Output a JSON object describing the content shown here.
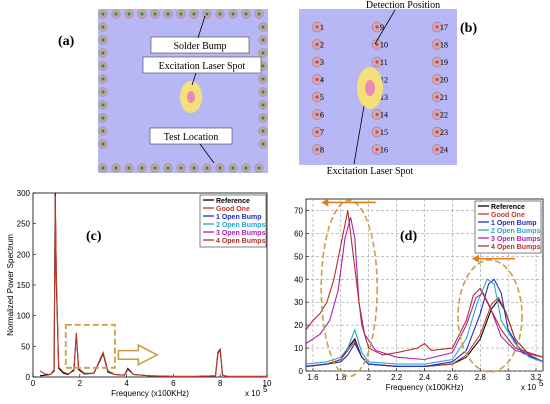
{
  "panel_a": {
    "letter": "(a)",
    "labels": {
      "solder_bump": "Solder Bump",
      "laser_spot": "Excitation Laser Spot",
      "test_location": "Test Location"
    }
  },
  "panel_b": {
    "letter": "(b)",
    "labels": {
      "detection": "Detection Position",
      "laser_spot": "Excitation Laser Spot"
    },
    "pads": [
      "1",
      "2",
      "3",
      "4",
      "5",
      "6",
      "7",
      "8",
      "9",
      "10",
      "11",
      "12",
      "13",
      "14",
      "15",
      "16",
      "17",
      "18",
      "19",
      "20",
      "21",
      "22",
      "23",
      "24"
    ]
  },
  "colors": {
    "reference": "#000000",
    "good_one": "#c0392b",
    "open1": "#1f2fbf",
    "open2": "#2aa6c9",
    "open3": "#b020b0",
    "open4": "#b03030",
    "chip": "#b7b7f5",
    "dash": "#c8a046"
  },
  "chart_data": [
    {
      "type": "line",
      "panel": "(c)",
      "ylabel": "Normalized Power Spectrum",
      "xlabel": "Frequency (x100KHz)",
      "x_exponent": "x 10",
      "x_exponent_sup": "5",
      "xlim": [
        0,
        10
      ],
      "ylim": [
        0,
        300
      ],
      "xticks": [
        "0",
        "2",
        "4",
        "6",
        "8",
        "10"
      ],
      "yticks": [
        "0",
        "50",
        "100",
        "150",
        "200",
        "250",
        "300"
      ],
      "legend": [
        "Reference",
        "Good One",
        "1 Open Bump",
        "2 Open Bumps",
        "3 Open Bumps",
        "4 Open Bumps"
      ],
      "series": [
        {
          "name": "Reference",
          "x": [
            0.3,
            0.5,
            0.75,
            0.9,
            0.95,
            1.0,
            1.1,
            1.3,
            1.5,
            1.75,
            1.85,
            1.95,
            2.2,
            2.6,
            2.9,
            3.0,
            3.2,
            3.5,
            3.9,
            4.05,
            4.3,
            5,
            6,
            7,
            7.8,
            7.9,
            8.0,
            8.1,
            8.3,
            9,
            10
          ],
          "y": [
            2,
            3,
            4,
            10,
            300,
            150,
            14,
            6,
            4,
            12,
            70,
            12,
            5,
            6,
            30,
            38,
            8,
            4,
            3,
            14,
            4,
            2,
            1,
            1,
            2,
            40,
            45,
            3,
            1,
            1,
            1
          ]
        },
        {
          "name": "Good One",
          "x": [
            0.3,
            0.5,
            0.75,
            0.9,
            0.95,
            1.0,
            1.1,
            1.3,
            1.5,
            1.75,
            1.85,
            1.95,
            2.2,
            2.6,
            2.9,
            3.0,
            3.2,
            3.5,
            3.9,
            4.05,
            4.3,
            5,
            6,
            7,
            7.8,
            7.9,
            8.0,
            8.1,
            8.3,
            9,
            10
          ],
          "y": [
            10,
            5,
            4,
            12,
            295,
            160,
            16,
            8,
            5,
            10,
            72,
            14,
            6,
            6,
            32,
            40,
            10,
            4,
            3,
            12,
            4,
            2,
            1,
            1,
            2,
            38,
            44,
            3,
            1,
            1,
            1
          ]
        }
      ]
    },
    {
      "type": "line",
      "panel": "(d)",
      "xlabel": "Frequency (x100KHz)",
      "x_exponent": "x 10",
      "x_exponent_sup": "5",
      "xlim": [
        1.55,
        3.25
      ],
      "ylim": [
        0,
        75
      ],
      "xticks": [
        "1.6",
        "1.8",
        "2",
        "2.2",
        "2.4",
        "2.6",
        "2.8",
        "3",
        "3.2"
      ],
      "yticks": [
        "0",
        "10",
        "20",
        "30",
        "40",
        "50",
        "60",
        "70"
      ],
      "legend": [
        "Reference",
        "Good One",
        "1 Open Bump",
        "2 Open Bumps",
        "3 Open Bumps",
        "4 Open Bumps"
      ],
      "series": [
        {
          "name": "Reference",
          "x": [
            1.55,
            1.7,
            1.8,
            1.85,
            1.9,
            1.95,
            2.0,
            2.2,
            2.4,
            2.6,
            2.7,
            2.8,
            2.88,
            2.93,
            2.98,
            3.05,
            3.15,
            3.25
          ],
          "y": [
            2,
            3,
            5,
            10,
            14,
            6,
            3,
            2,
            2,
            3,
            6,
            14,
            27,
            31,
            26,
            14,
            7,
            4
          ]
        },
        {
          "name": "Good One",
          "x": [
            1.55,
            1.7,
            1.8,
            1.85,
            1.9,
            1.95,
            2.0,
            2.2,
            2.4,
            2.6,
            2.7,
            2.8,
            2.88,
            2.93,
            2.98,
            3.05,
            3.15,
            3.25
          ],
          "y": [
            2,
            3,
            5,
            9,
            13,
            6,
            3,
            2,
            2,
            3,
            7,
            16,
            29,
            32,
            26,
            14,
            7,
            4
          ]
        },
        {
          "name": "1 Open Bump",
          "x": [
            1.55,
            1.7,
            1.8,
            1.85,
            1.9,
            1.95,
            2.0,
            2.2,
            2.4,
            2.6,
            2.7,
            2.8,
            2.86,
            2.9,
            2.95,
            3.0,
            3.1,
            3.25
          ],
          "y": [
            2,
            3,
            4,
            7,
            12,
            6,
            3,
            2,
            2,
            4,
            9,
            25,
            38,
            40,
            34,
            18,
            8,
            4
          ]
        },
        {
          "name": "2 Open Bumps",
          "x": [
            1.55,
            1.7,
            1.8,
            1.85,
            1.9,
            1.95,
            2.0,
            2.2,
            2.4,
            2.6,
            2.7,
            2.78,
            2.85,
            2.9,
            2.95,
            3.05,
            3.15,
            3.25
          ],
          "y": [
            3,
            4,
            6,
            10,
            18,
            8,
            4,
            3,
            3,
            5,
            14,
            30,
            40,
            38,
            22,
            12,
            6,
            4
          ]
        },
        {
          "name": "3 Open Bumps",
          "x": [
            1.55,
            1.65,
            1.72,
            1.78,
            1.83,
            1.87,
            1.9,
            1.93,
            1.97,
            2.05,
            2.2,
            2.4,
            2.6,
            2.7,
            2.77,
            2.82,
            2.87,
            2.95,
            3.05,
            3.25
          ],
          "y": [
            12,
            16,
            22,
            35,
            58,
            67,
            58,
            30,
            16,
            9,
            6,
            5,
            8,
            20,
            32,
            34,
            28,
            15,
            9,
            6
          ]
        },
        {
          "name": "4 Open Bumps",
          "x": [
            1.55,
            1.6,
            1.65,
            1.7,
            1.75,
            1.8,
            1.85,
            1.9,
            1.95,
            2.0,
            2.1,
            2.2,
            2.35,
            2.4,
            2.45,
            2.6,
            2.7,
            2.75,
            2.8,
            2.85,
            2.95,
            3.05,
            3.25
          ],
          "y": [
            18,
            22,
            25,
            30,
            40,
            55,
            70,
            45,
            20,
            10,
            7,
            8,
            10,
            12,
            9,
            10,
            22,
            33,
            36,
            30,
            18,
            10,
            6
          ]
        }
      ]
    }
  ]
}
